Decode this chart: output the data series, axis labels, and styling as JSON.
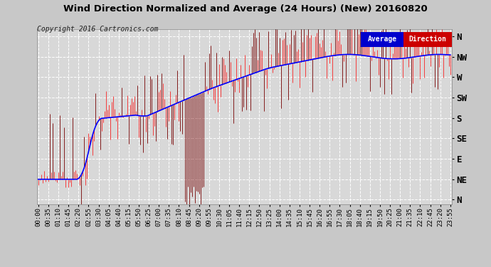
{
  "title": "Wind Direction Normalized and Average (24 Hours) (New) 20160820",
  "copyright": "Copyright 2016 Cartronics.com",
  "background_color": "#c8c8c8",
  "plot_bg_color": "#d8d8d8",
  "grid_color": "#ffffff",
  "ytick_labels": [
    "N",
    "NE",
    "E",
    "SE",
    "S",
    "SW",
    "W",
    "NW",
    "N"
  ],
  "ytick_values": [
    0,
    45,
    90,
    135,
    180,
    225,
    270,
    315,
    360
  ],
  "ylim": [
    -10,
    375
  ],
  "legend_avg_bg": "#0000cd",
  "legend_dir_bg": "#cc0000",
  "n_points": 288
}
